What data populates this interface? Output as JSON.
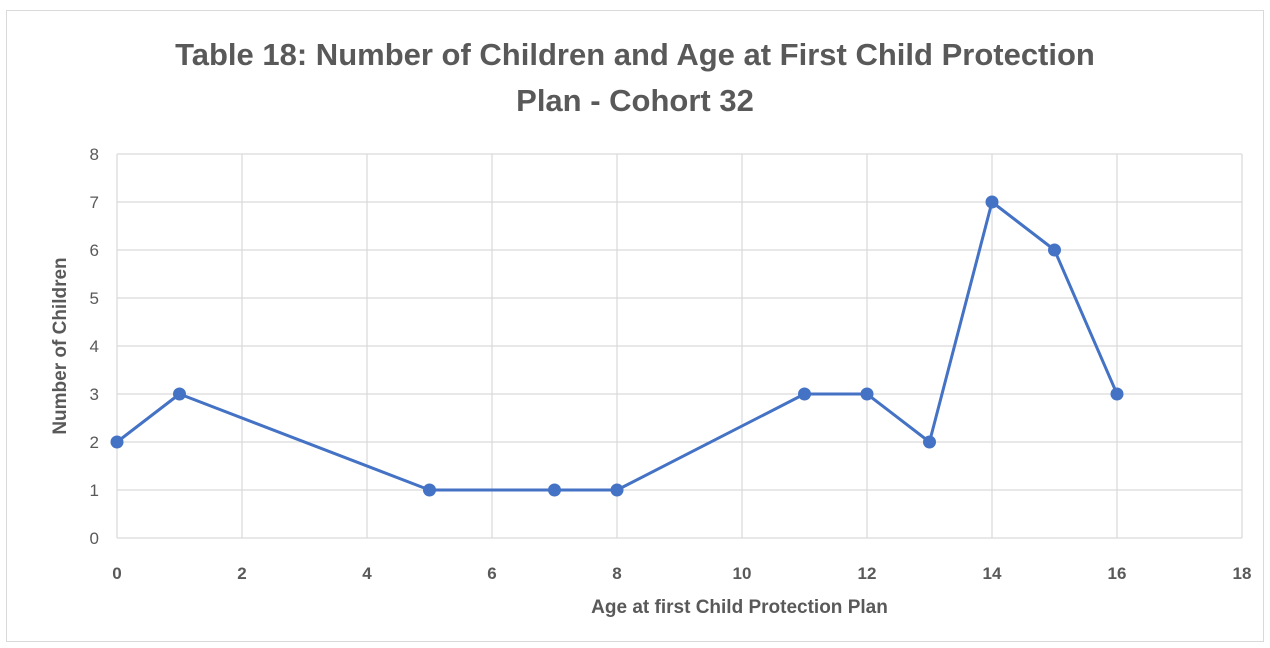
{
  "chart_data": {
    "type": "line",
    "title_line1": "Table 18: Number of Children and Age at First Child Protection",
    "title_line2": "Plan -  Cohort  32",
    "xlabel": "Age at first Child Protection Plan",
    "ylabel": "Number of Children",
    "xlim": [
      0,
      18
    ],
    "ylim": [
      0,
      8
    ],
    "x_ticks": [
      0,
      2,
      4,
      6,
      8,
      10,
      12,
      14,
      16,
      18
    ],
    "y_ticks": [
      0,
      1,
      2,
      3,
      4,
      5,
      6,
      7,
      8
    ],
    "grid": true,
    "series": [
      {
        "x": [
          0,
          1,
          5,
          7,
          8,
          11,
          12,
          13,
          14,
          15,
          16
        ],
        "y": [
          2,
          3,
          1,
          1,
          1,
          3,
          3,
          2,
          7,
          6,
          3
        ]
      }
    ],
    "colors": {
      "line": "#4472c4",
      "grid": "#d9d9d9",
      "text": "#595959"
    }
  }
}
